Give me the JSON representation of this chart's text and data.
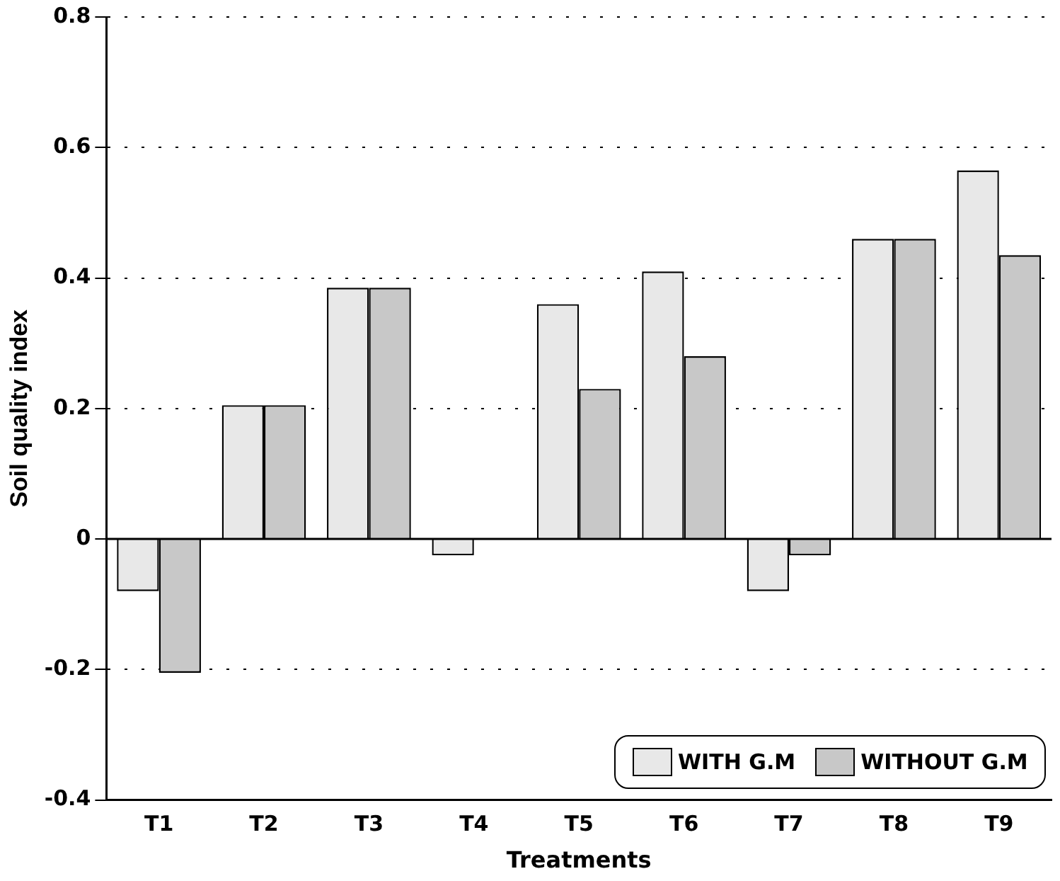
{
  "chart_data": {
    "type": "bar",
    "xlabel": "Treatments",
    "ylabel": "Soil quality index",
    "categories": [
      "T1",
      "T2",
      "T3",
      "T4",
      "T5",
      "T6",
      "T7",
      "T8",
      "T9"
    ],
    "series": [
      {
        "name": "WITH G.M",
        "color": "#e8e8e8",
        "values": [
          -0.08,
          0.205,
          0.385,
          -0.025,
          0.36,
          0.41,
          -0.08,
          0.46,
          0.565
        ]
      },
      {
        "name": "WITHOUT G.M",
        "color": "#c8c8c8",
        "values": [
          -0.205,
          0.205,
          0.385,
          0,
          0.23,
          0.28,
          -0.025,
          0.46,
          0.435
        ]
      }
    ],
    "ylim": [
      -0.4,
      0.8
    ],
    "yticks": [
      {
        "value": -0.4,
        "label": "-0.4"
      },
      {
        "value": -0.2,
        "label": "-0.2"
      },
      {
        "value": 0,
        "label": "0"
      },
      {
        "value": 0.2,
        "label": "0.2"
      },
      {
        "value": 0.4,
        "label": "0.4"
      },
      {
        "value": 0.6,
        "label": "0.6"
      },
      {
        "value": 0.8,
        "label": "0.8"
      }
    ],
    "ref_lines": [
      {
        "axis": "y",
        "value": 0,
        "color": "#000000",
        "line_style": "solid"
      }
    ],
    "grid": "y",
    "legend": "bottom right"
  }
}
